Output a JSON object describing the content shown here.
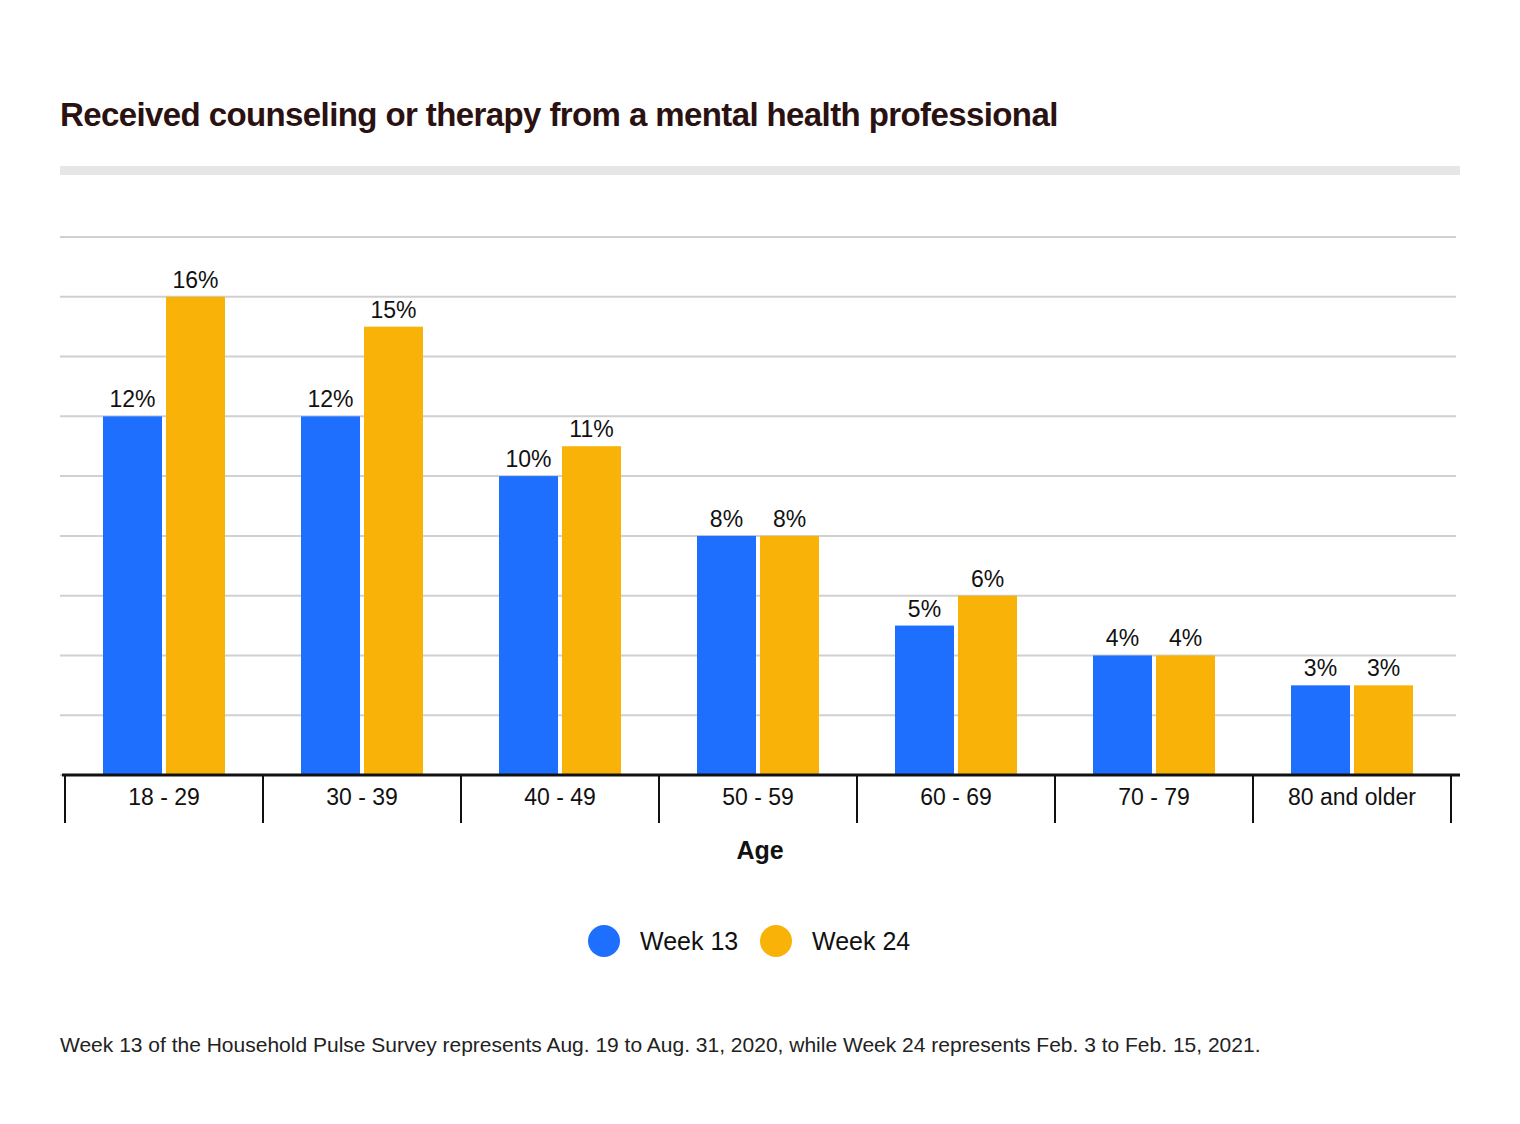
{
  "chart_data": {
    "type": "bar",
    "title": "Received counseling or therapy from a mental health professional",
    "x_label": "Age",
    "categories": [
      "18 - 29",
      "30 - 39",
      "40 - 49",
      "50 - 59",
      "60 - 69",
      "70 - 79",
      "80 and older"
    ],
    "series": [
      {
        "name": "Week 13",
        "color": "#1f6fff",
        "values": [
          12,
          12,
          10,
          8,
          5,
          4,
          3
        ],
        "value_labels": [
          "12%",
          "12%",
          "10%",
          "8%",
          "5%",
          "4%",
          "3%"
        ]
      },
      {
        "name": "Week 24",
        "color": "#f9b208",
        "values": [
          16,
          15,
          11,
          8,
          6,
          4,
          3
        ],
        "value_labels": [
          "16%",
          "15%",
          "11%",
          "8%",
          "6%",
          "4%",
          "3%"
        ]
      }
    ],
    "ylim": [
      0,
      18
    ],
    "yticks": [
      0,
      2,
      4,
      6,
      8,
      10,
      12,
      14,
      16,
      18
    ],
    "grid": true,
    "tick_labels": "x",
    "data_labels": true,
    "legend": "bottom",
    "annotations": [
      "Week 13 of the Household Pulse Survey represents Aug. 19 to Aug. 31, 2020, while Week 24 represents Feb. 3 to Feb. 15, 2021."
    ]
  }
}
